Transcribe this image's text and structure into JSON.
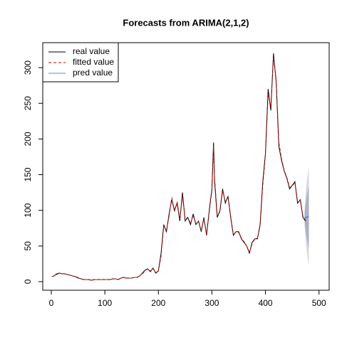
{
  "chart_data": {
    "type": "line",
    "title": "Forecasts from ARIMA(2,1,2)",
    "xlim": [
      -16,
      519
    ],
    "ylim": [
      -12,
      335
    ],
    "xticks": [
      0,
      100,
      200,
      300,
      400,
      500
    ],
    "yticks": [
      0,
      50,
      100,
      150,
      200,
      250,
      300
    ],
    "legend": "top-left",
    "x": [
      1,
      5,
      10,
      15,
      20,
      25,
      30,
      35,
      40,
      45,
      50,
      55,
      60,
      65,
      70,
      75,
      80,
      85,
      90,
      95,
      100,
      105,
      110,
      115,
      120,
      125,
      130,
      135,
      140,
      145,
      150,
      155,
      160,
      165,
      170,
      175,
      180,
      185,
      190,
      195,
      200,
      205,
      210,
      215,
      220,
      225,
      230,
      235,
      240,
      245,
      250,
      255,
      260,
      265,
      270,
      275,
      280,
      285,
      290,
      295,
      300,
      303,
      305,
      310,
      315,
      320,
      325,
      330,
      335,
      340,
      345,
      350,
      355,
      360,
      365,
      370,
      375,
      380,
      385,
      390,
      395,
      400,
      405,
      410,
      415,
      420,
      425,
      430,
      435,
      440,
      445,
      450,
      455,
      460,
      465,
      470,
      475
    ],
    "series": [
      {
        "name": "real value",
        "color": "#000000",
        "dash": "none",
        "values": [
          7,
          8,
          11,
          12,
          11,
          11,
          10,
          9,
          8,
          7,
          5,
          4,
          3,
          3,
          3,
          2,
          3,
          3,
          3,
          3,
          3,
          3,
          3,
          4,
          4,
          3,
          5,
          6,
          5,
          5,
          5,
          6,
          6,
          8,
          12,
          16,
          18,
          14,
          19,
          12,
          15,
          40,
          80,
          70,
          95,
          115,
          100,
          110,
          85,
          125,
          85,
          90,
          80,
          95,
          80,
          85,
          70,
          90,
          65,
          100,
          130,
          195,
          140,
          90,
          100,
          130,
          110,
          120,
          90,
          65,
          70,
          70,
          60,
          55,
          50,
          40,
          55,
          60,
          60,
          80,
          140,
          180,
          270,
          240,
          320,
          280,
          190,
          170,
          155,
          145,
          130,
          135,
          140,
          110,
          115,
          90,
          85
        ]
      },
      {
        "name": "fitted value",
        "color": "#cc0000",
        "dash": "4 3",
        "values": [
          7,
          8,
          10,
          12,
          11,
          11,
          10,
          9,
          8,
          7,
          6,
          4,
          3,
          3,
          3,
          2,
          3,
          3,
          3,
          3,
          3,
          3,
          3,
          4,
          4,
          3,
          5,
          6,
          5,
          5,
          5,
          6,
          6,
          8,
          11,
          15,
          18,
          15,
          18,
          13,
          15,
          36,
          78,
          72,
          92,
          118,
          98,
          112,
          88,
          120,
          88,
          90,
          82,
          92,
          82,
          84,
          72,
          88,
          66,
          98,
          128,
          190,
          145,
          92,
          98,
          128,
          112,
          118,
          92,
          66,
          70,
          69,
          61,
          56,
          50,
          41,
          53,
          60,
          61,
          78,
          135,
          178,
          262,
          245,
          315,
          282,
          195,
          172,
          156,
          146,
          132,
          134,
          139,
          112,
          114,
          92,
          86
        ]
      },
      {
        "name": "pred value",
        "color": "#4a90e2",
        "dash": "none",
        "x": [
          473,
          475,
          477,
          479,
          481
        ],
        "values": [
          90,
          90,
          90,
          91,
          91
        ]
      }
    ],
    "intervals": [
      {
        "color": "#d6d6e0",
        "x": [
          473,
          475,
          477,
          479,
          481
        ],
        "lower": [
          80,
          60,
          45,
          32,
          22
        ],
        "upper": [
          100,
          122,
          138,
          150,
          160
        ]
      },
      {
        "color": "#aeb0c8",
        "x": [
          473,
          475,
          477,
          479,
          481
        ],
        "lower": [
          84,
          72,
          62,
          54,
          46
        ],
        "upper": [
          96,
          108,
          118,
          127,
          134
        ]
      }
    ]
  }
}
